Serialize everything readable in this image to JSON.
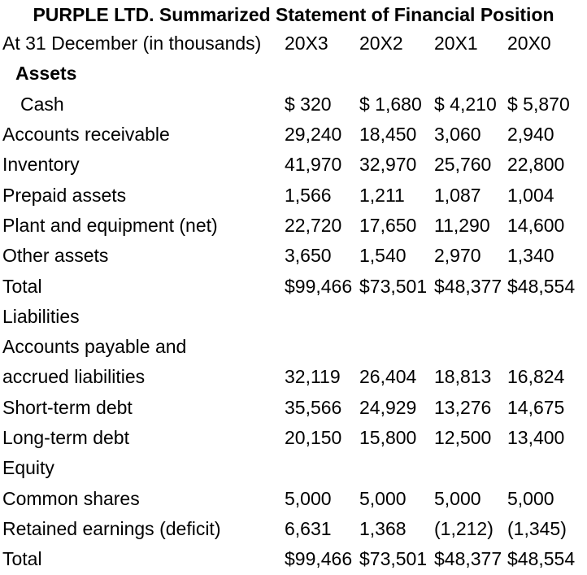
{
  "title": "PURPLE LTD. Summarized Statement of Financial Position",
  "table": {
    "header": {
      "label": "At 31 December (in thousands)",
      "columns": [
        "20X3",
        "20X2",
        "20X1",
        "20X0"
      ]
    },
    "rows": [
      {
        "label": "Assets",
        "bold": true,
        "indent": 1
      },
      {
        "label": "Cash",
        "indent": 2,
        "values": [
          "$ 320",
          "$ 1,680",
          "$ 4,210",
          "$ 5,870"
        ]
      },
      {
        "label": "Accounts receivable",
        "values": [
          "29,240",
          "18,450",
          "3,060",
          "2,940"
        ]
      },
      {
        "label": "Inventory",
        "values": [
          "41,970",
          "32,970",
          "25,760",
          "22,800"
        ]
      },
      {
        "label": "Prepaid assets",
        "values": [
          "1,566",
          "1,211",
          "1,087",
          "1,004"
        ]
      },
      {
        "label": "Plant and equipment (net)",
        "values": [
          "22,720",
          "17,650",
          "11,290",
          "14,600"
        ]
      },
      {
        "label": "Other assets",
        "values": [
          "3,650",
          "1,540",
          "2,970",
          "1,340"
        ]
      },
      {
        "label": "Total",
        "values": [
          "$99,466",
          "$73,501",
          "$48,377",
          "$48,554"
        ]
      },
      {
        "label": "Liabilities"
      },
      {
        "label": "Accounts payable and"
      },
      {
        "label": "accrued liabilities",
        "values": [
          "32,119",
          "26,404",
          "18,813",
          "16,824"
        ]
      },
      {
        "label": "Short-term debt",
        "values": [
          "35,566",
          "24,929",
          "13,276",
          "14,675"
        ]
      },
      {
        "label": "Long-term debt",
        "values": [
          "20,150",
          "15,800",
          "12,500",
          "13,400"
        ]
      },
      {
        "label": "Equity"
      },
      {
        "label": "Common shares",
        "values": [
          "5,000",
          "5,000",
          "5,000",
          "5,000"
        ]
      },
      {
        "label": "Retained earnings (deficit)",
        "values": [
          "6,631",
          "1,368",
          "(1,212)",
          "(1,345)"
        ]
      },
      {
        "label": "Total",
        "values": [
          "$99,466",
          "$73,501",
          "$48,377",
          "$48,554"
        ]
      }
    ]
  }
}
